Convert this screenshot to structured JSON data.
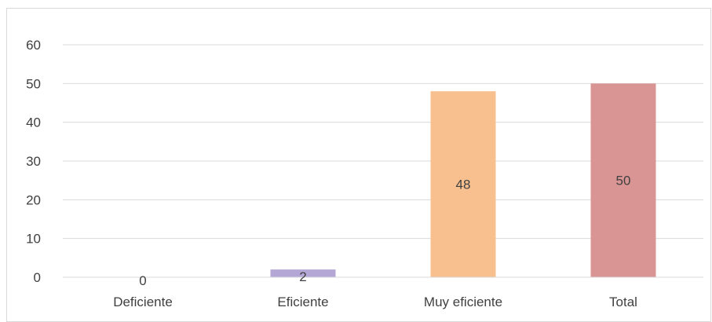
{
  "chart_data": {
    "type": "bar",
    "title": "",
    "xlabel": "",
    "ylabel": "",
    "categories": [
      "Deficiente",
      "Eficiente",
      "Muy eficiente",
      "Total"
    ],
    "values": [
      0,
      2,
      48,
      50
    ],
    "data_labels": [
      "0",
      "2",
      "48",
      "50"
    ],
    "colors": [
      "#b4a7d6",
      "#b4a7d6",
      "#f9c08f",
      "#d99594"
    ],
    "ylim": [
      0,
      60
    ],
    "yticks": [
      0,
      10,
      20,
      30,
      40,
      50,
      60
    ],
    "ytick_labels": [
      "0",
      "10",
      "20",
      "30",
      "40",
      "50",
      "60"
    ],
    "grid": true,
    "legend": "none"
  }
}
